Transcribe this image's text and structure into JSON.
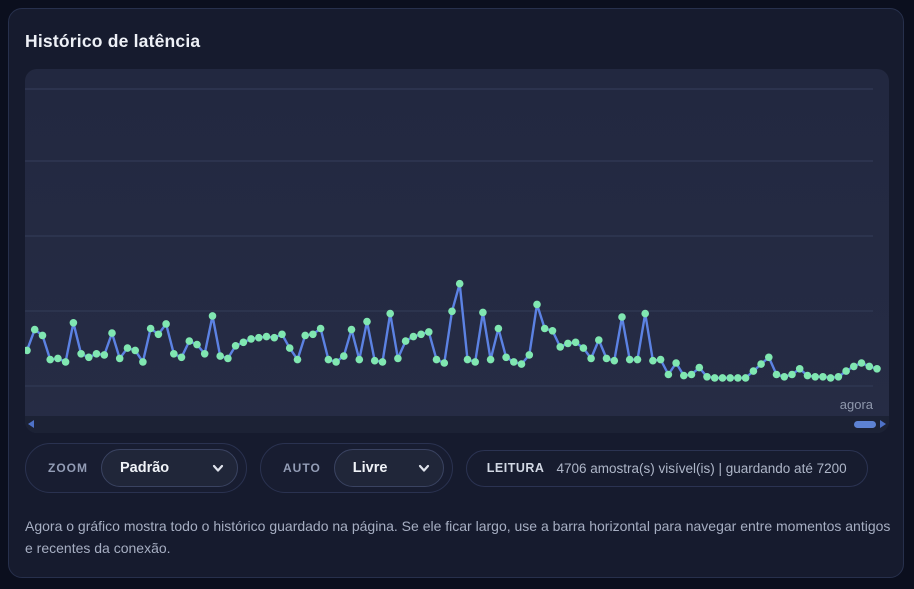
{
  "header": {
    "title": "Histórico de latência"
  },
  "chart_data": {
    "type": "line",
    "title": "Histórico de latência",
    "x_end_label": "agora",
    "xlabel": "",
    "ylabel": "",
    "ylim": [
      0,
      105
    ],
    "grid": true,
    "line_color": "#5c82e3",
    "point_color": "#80e7b1",
    "grid_color": "#2f3752",
    "values": [
      31,
      49,
      44,
      23,
      24,
      21,
      55,
      28,
      25,
      28,
      27,
      46,
      24,
      33,
      31,
      21,
      50,
      45,
      54,
      28,
      25,
      39,
      36,
      28,
      61,
      26,
      24,
      35,
      38,
      41,
      42,
      43,
      42,
      45,
      33,
      23,
      44,
      45,
      50,
      23,
      21,
      26,
      49,
      23,
      56,
      22,
      21,
      63,
      24,
      39,
      43,
      45,
      47,
      23,
      20,
      65,
      89,
      23,
      21,
      64,
      23,
      50,
      25,
      21,
      19,
      27,
      71,
      50,
      48,
      34,
      37,
      38,
      33,
      24,
      40,
      24,
      22,
      60,
      23,
      23,
      63,
      22,
      23,
      10,
      20,
      9,
      10,
      16,
      8,
      7,
      7,
      7,
      7,
      7,
      13,
      19,
      25,
      10,
      8,
      10,
      15,
      9,
      8,
      8,
      7,
      8,
      13,
      17,
      20,
      17,
      15
    ]
  },
  "controls": {
    "zoom": {
      "label": "ZOOM",
      "value": "Padrão"
    },
    "auto": {
      "label": "AUTO",
      "value": "Livre"
    },
    "reading": {
      "label": "LEITURA",
      "value": "4706 amostra(s) visível(is) | guardando até 7200",
      "samples_visible": 4706,
      "samples_max": 7200
    }
  },
  "footer": {
    "text": "Agora o gráfico mostra todo o histórico guardado na página. Se ele ficar largo, use a barra horizontal para navegar entre momentos antigos e recentes da conexão."
  },
  "colors": {
    "page_bg": "#0b0f1e",
    "card_bg": "#161b2e",
    "panel_bg": "#232940",
    "scrollbar_thumb": "#5d82d3",
    "scrollbar_arrow": "#4e72c8"
  }
}
